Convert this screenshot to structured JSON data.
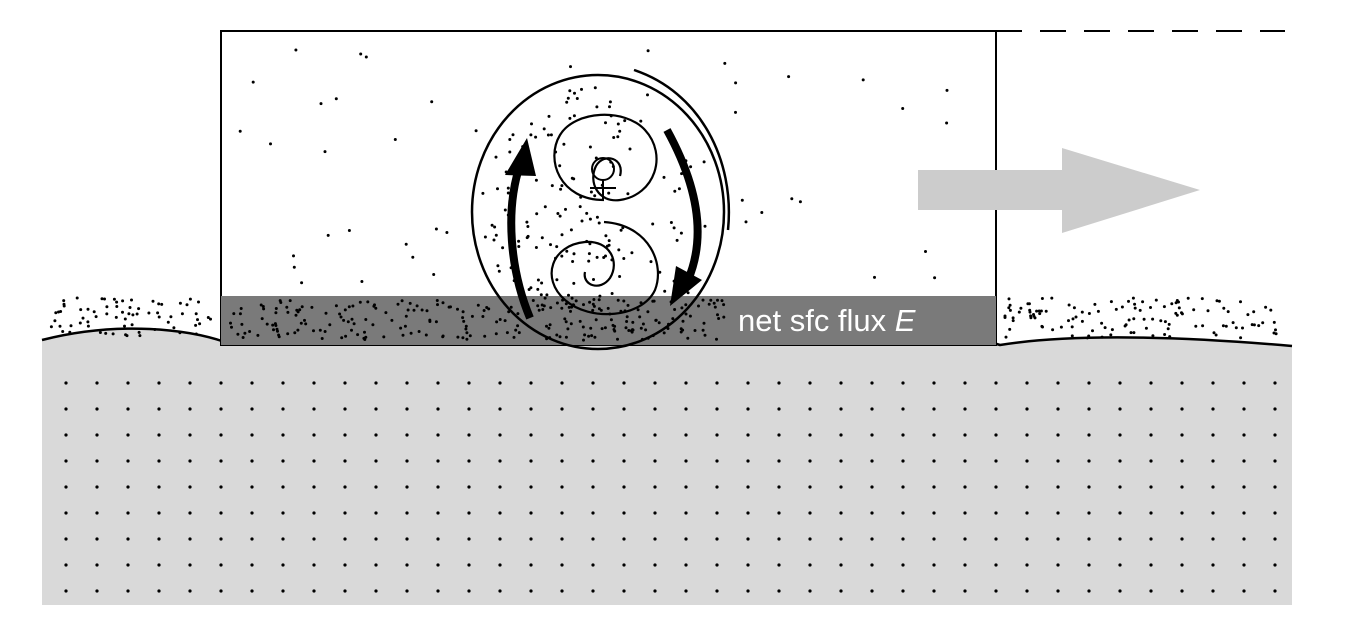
{
  "label": {
    "text": "net sfc flux ",
    "symbol": "E"
  },
  "colors": {
    "ground": "#d9d9d9",
    "flux_band": "#7a7a7a",
    "arrow": "#cccccc",
    "ink": "#000000"
  },
  "icons": [
    "large-eddy-loop",
    "clockwise-swirl-icon",
    "counterclockwise-swirl-icon",
    "motion-arrow-icon"
  ]
}
